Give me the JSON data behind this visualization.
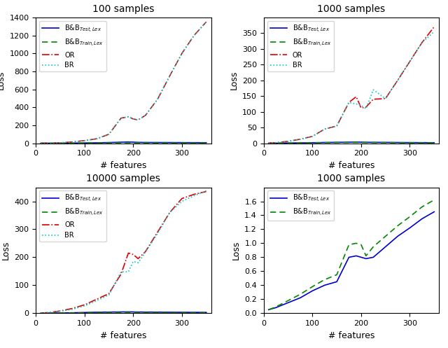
{
  "titles": [
    "100 samples",
    "1000 samples",
    "10000 samples",
    "1000 samples"
  ],
  "xlabel": "# features",
  "ylabel": "Loss",
  "x": [
    10,
    25,
    50,
    75,
    100,
    125,
    150,
    175,
    190,
    200,
    210,
    225,
    250,
    275,
    300,
    325,
    350
  ],
  "subplot1": {
    "bnb_test": [
      0.5,
      0.8,
      1.2,
      2.0,
      3.5,
      5.5,
      8.0,
      12.0,
      14.0,
      12.5,
      10.0,
      9.0,
      8.5,
      8.0,
      7.5,
      7.0,
      6.5
    ],
    "bnb_train": [
      0.3,
      0.5,
      0.8,
      1.2,
      1.8,
      2.5,
      3.5,
      5.0,
      5.5,
      5.0,
      4.5,
      4.0,
      3.5,
      3.0,
      2.8,
      2.5,
      2.3
    ],
    "or": [
      0.5,
      1.5,
      5.0,
      15.0,
      30.0,
      50.0,
      100.0,
      280.0,
      295.0,
      270.0,
      260.0,
      310.0,
      490.0,
      750.0,
      1000.0,
      1200.0,
      1350.0
    ],
    "br": [
      0.5,
      1.5,
      5.0,
      15.0,
      30.0,
      50.0,
      100.0,
      280.0,
      295.0,
      270.0,
      260.0,
      310.0,
      490.0,
      750.0,
      1000.0,
      1200.0,
      1350.0
    ]
  },
  "subplot2": {
    "bnb_test": [
      0.2,
      0.4,
      0.8,
      1.2,
      1.8,
      2.5,
      3.0,
      3.5,
      3.8,
      3.5,
      3.2,
      3.0,
      2.8,
      2.5,
      2.2,
      2.0,
      1.8
    ],
    "bnb_train": [
      0.1,
      0.3,
      0.5,
      0.8,
      1.2,
      1.8,
      2.2,
      2.5,
      2.8,
      2.5,
      2.2,
      2.0,
      1.8,
      1.5,
      1.3,
      1.1,
      1.0
    ],
    "or": [
      0.5,
      2.0,
      6.0,
      13.0,
      22.0,
      45.0,
      55.0,
      130.0,
      148.0,
      112.0,
      115.0,
      140.0,
      142.0,
      200.0,
      260.0,
      320.0,
      370.0
    ],
    "br": [
      0.5,
      2.0,
      6.0,
      13.0,
      22.0,
      45.0,
      55.0,
      130.0,
      125.0,
      120.0,
      110.0,
      170.0,
      142.0,
      200.0,
      260.0,
      320.0,
      355.0
    ]
  },
  "subplot3": {
    "bnb_test": [
      0.2,
      0.4,
      0.8,
      1.5,
      2.5,
      3.5,
      4.0,
      4.5,
      4.8,
      4.5,
      4.2,
      4.0,
      3.8,
      3.5,
      3.2,
      3.0,
      2.8
    ],
    "bnb_train": [
      0.1,
      0.3,
      0.6,
      1.0,
      1.5,
      2.2,
      2.5,
      2.8,
      3.0,
      2.8,
      2.5,
      2.2,
      2.0,
      1.8,
      1.6,
      1.4,
      1.2
    ],
    "or": [
      0.5,
      2.0,
      8.0,
      17.0,
      30.0,
      50.0,
      70.0,
      140.0,
      215.0,
      210.0,
      195.0,
      220.0,
      290.0,
      360.0,
      410.0,
      425.0,
      435.0
    ],
    "br": [
      0.5,
      2.0,
      7.0,
      14.0,
      26.0,
      45.0,
      65.0,
      148.0,
      148.0,
      185.0,
      180.0,
      218.0,
      285.0,
      360.0,
      400.0,
      420.0,
      438.0
    ]
  },
  "subplot4": {
    "bnb_test": [
      0.05,
      0.08,
      0.15,
      0.22,
      0.32,
      0.4,
      0.45,
      0.8,
      0.82,
      0.8,
      0.78,
      0.8,
      0.95,
      1.1,
      1.22,
      1.35,
      1.45
    ],
    "bnb_train": [
      0.05,
      0.09,
      0.18,
      0.27,
      0.38,
      0.48,
      0.55,
      0.98,
      1.0,
      0.98,
      0.82,
      0.95,
      1.1,
      1.25,
      1.38,
      1.52,
      1.62
    ]
  },
  "colors": {
    "bnb_test": "#0000cc",
    "bnb_train": "#008800",
    "or": "#dd0000",
    "br": "#00cccc"
  },
  "legend_labels": {
    "bnb_test": "B&B$_{Test, Lex}$",
    "bnb_train": "B&B$_{Train, Lex}$",
    "or": "OR",
    "br": "BR"
  }
}
